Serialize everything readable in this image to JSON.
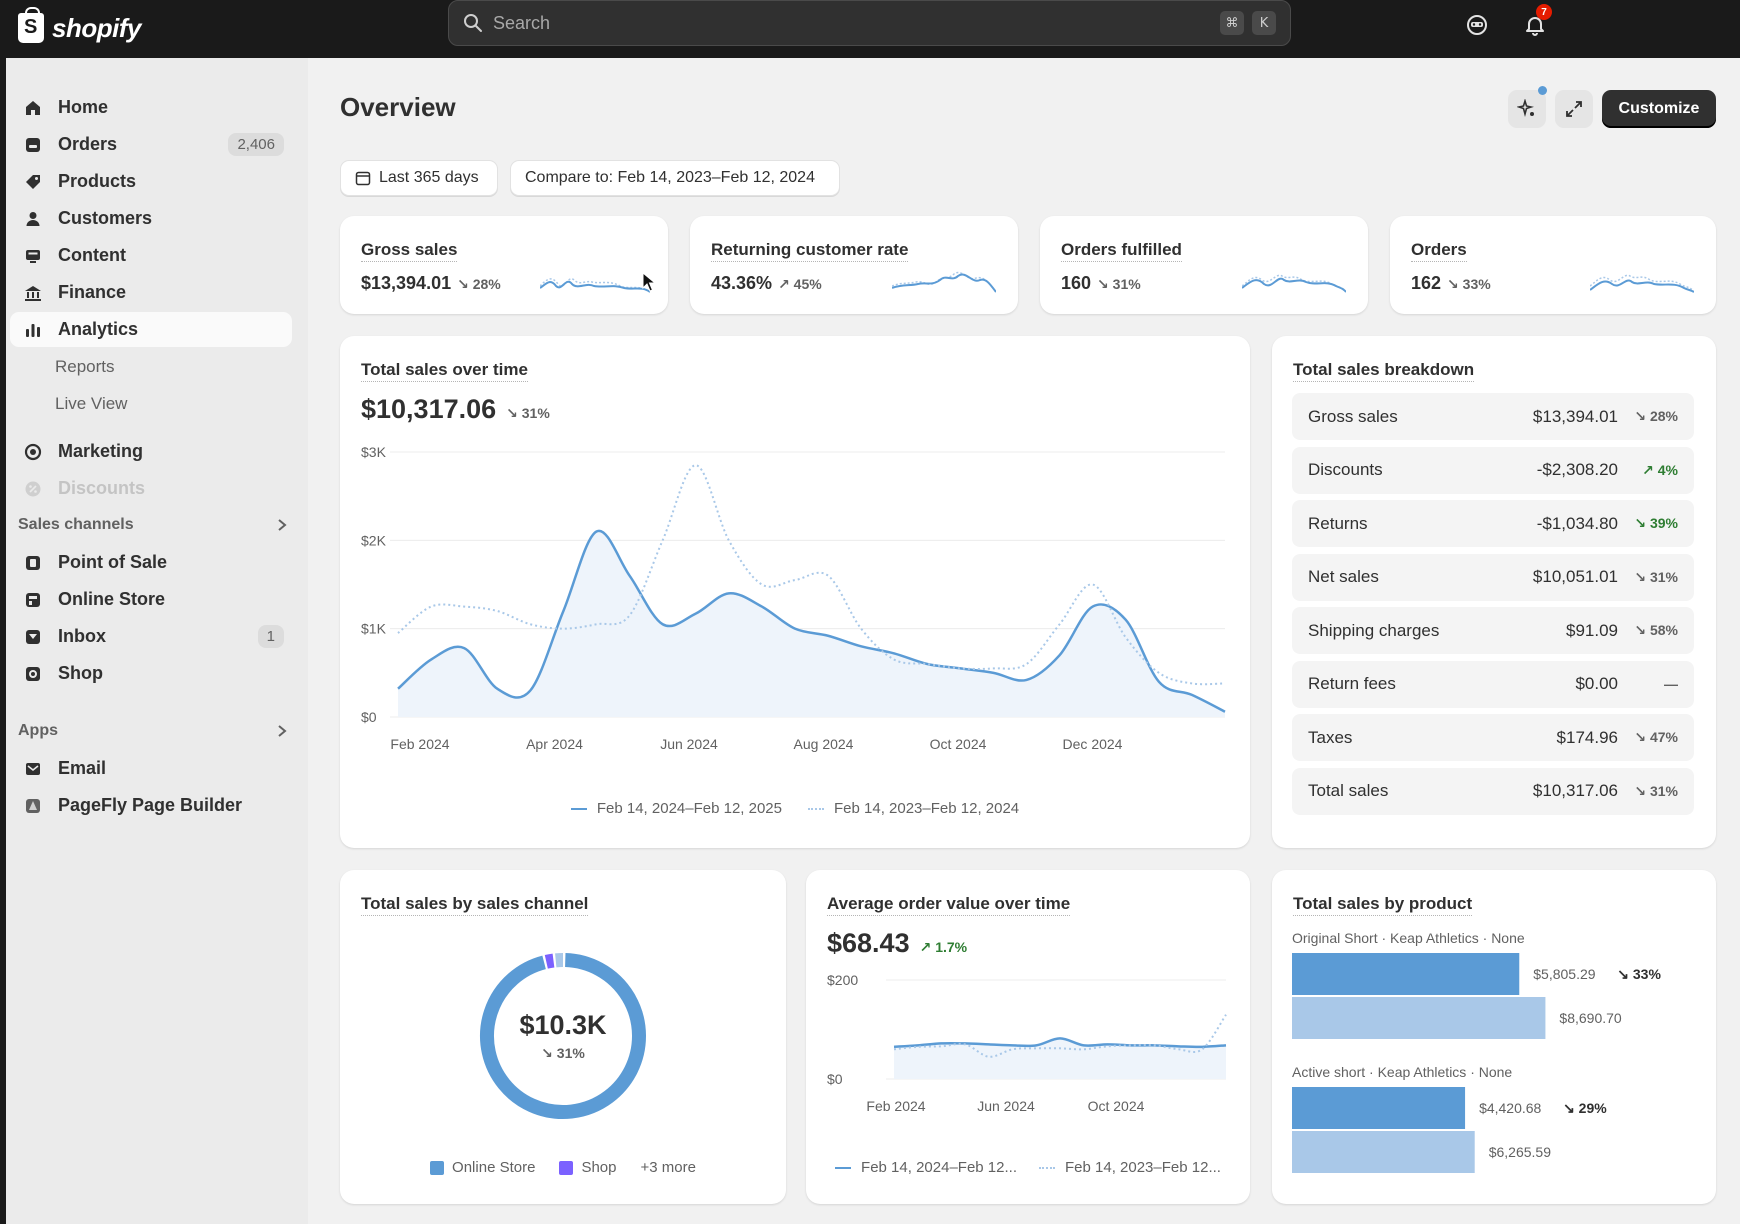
{
  "topbar": {
    "brand": "shopify",
    "search_placeholder": "Search",
    "shortcut_keys": [
      "⌘",
      "K"
    ],
    "notification_count": "7"
  },
  "sidebar": {
    "items": [
      {
        "label": "Home",
        "icon": "home-icon"
      },
      {
        "label": "Orders",
        "icon": "orders-icon",
        "badge": "2,406"
      },
      {
        "label": "Products",
        "icon": "tag-icon"
      },
      {
        "label": "Customers",
        "icon": "person-icon"
      },
      {
        "label": "Content",
        "icon": "content-icon"
      },
      {
        "label": "Finance",
        "icon": "bank-icon"
      },
      {
        "label": "Analytics",
        "icon": "bar-chart-icon"
      }
    ],
    "analytics_sub": [
      "Reports",
      "Live View"
    ],
    "marketing": "Marketing",
    "discounts": "Discounts",
    "sales_channels_label": "Sales channels",
    "channels": [
      {
        "label": "Point of Sale"
      },
      {
        "label": "Online Store"
      },
      {
        "label": "Inbox",
        "badge": "1"
      },
      {
        "label": "Shop"
      }
    ],
    "apps_label": "Apps",
    "apps": [
      {
        "label": "Email"
      },
      {
        "label": "PageFly Page Builder"
      }
    ]
  },
  "header": {
    "title": "Overview",
    "customize_label": "Customize",
    "date_range": "Last 365 days",
    "compare": "Compare to: Feb 14, 2023–Feb 12, 2024"
  },
  "metrics": [
    {
      "title": "Gross sales",
      "value": "$13,394.01",
      "delta": "↘ 28%"
    },
    {
      "title": "Returning customer rate",
      "value": "43.36%",
      "delta": "↗ 45%"
    },
    {
      "title": "Orders fulfilled",
      "value": "160",
      "delta": "↘ 31%"
    },
    {
      "title": "Orders",
      "value": "162",
      "delta": "↘ 33%"
    }
  ],
  "total_sales": {
    "title": "Total sales over time",
    "value": "$10,317.06",
    "delta": "↘ 31%",
    "legend_current": "Feb 14, 2024–Feb 12, 2025",
    "legend_previous": "Feb 14, 2023–Feb 12, 2024"
  },
  "breakdown": {
    "title": "Total sales breakdown",
    "rows": [
      {
        "label": "Gross sales",
        "value": "$13,394.01",
        "delta": "↘ 28%",
        "up": false
      },
      {
        "label": "Discounts",
        "value": "-$2,308.20",
        "delta": "↗ 4%",
        "up": true
      },
      {
        "label": "Returns",
        "value": "-$1,034.80",
        "delta": "↘ 39%",
        "up": true
      },
      {
        "label": "Net sales",
        "value": "$10,051.01",
        "delta": "↘ 31%",
        "up": false
      },
      {
        "label": "Shipping charges",
        "value": "$91.09",
        "delta": "↘ 58%",
        "up": false
      },
      {
        "label": "Return fees",
        "value": "$0.00",
        "delta": "—",
        "up": false
      },
      {
        "label": "Taxes",
        "value": "$174.96",
        "delta": "↘ 47%",
        "up": false
      },
      {
        "label": "Total sales",
        "value": "$10,317.06",
        "delta": "↘ 31%",
        "up": false
      }
    ]
  },
  "by_channel": {
    "title": "Total sales by sales channel",
    "center_value": "$10.3K",
    "center_delta": "↘ 31%",
    "legend": [
      "Online Store",
      "Shop",
      "+3 more"
    ]
  },
  "aov": {
    "title": "Average order value over time",
    "value": "$68.43",
    "delta": "↗ 1.7%",
    "legend_current": "Feb 14, 2024–Feb 12...",
    "legend_previous": "Feb 14, 2023–Feb 12..."
  },
  "by_product": {
    "title": "Total sales by product",
    "products": [
      {
        "name": "Original Short · Keap Athletics · None",
        "current": "$5,805.29",
        "delta": "↘ 33%",
        "previous": "$8,690.70"
      },
      {
        "name": "Active short · Keap Athletics · None",
        "current": "$4,420.68",
        "delta": "↘ 29%",
        "previous": "$6,265.59"
      }
    ]
  },
  "colors": {
    "accent": "#5b9bd5",
    "accent_light": "#a9c8e8",
    "shop": "#7b61ff",
    "dark": "#303030"
  },
  "chart_data": [
    {
      "type": "line",
      "title": "Total sales over time",
      "y_ticks": [
        "$3K",
        "$2K",
        "$1K",
        "$0"
      ],
      "x_ticks": [
        "Feb 2024",
        "Apr 2024",
        "Jun 2024",
        "Aug 2024",
        "Oct 2024",
        "Dec 2024"
      ],
      "ylim": [
        0,
        3000
      ],
      "series": [
        {
          "name": "Feb 14, 2024–Feb 12, 2025",
          "style": "solid",
          "values": [
            320,
            650,
            780,
            320,
            300,
            1200,
            2100,
            1600,
            1050,
            1170,
            1400,
            1250,
            1000,
            920,
            800,
            720,
            600,
            550,
            500,
            420,
            700,
            1250,
            1100,
            400,
            250,
            60
          ]
        },
        {
          "name": "Feb 14, 2023–Feb 12, 2024",
          "style": "dotted",
          "values": [
            950,
            1250,
            1250,
            1200,
            1050,
            1000,
            1050,
            1150,
            2000,
            2850,
            2000,
            1500,
            1550,
            1600,
            1000,
            650,
            600,
            550,
            550,
            600,
            1050,
            1500,
            900,
            500,
            380,
            380
          ]
        }
      ]
    },
    {
      "type": "pie",
      "title": "Total sales by sales channel",
      "slices": [
        {
          "name": "Online Store",
          "value": 96
        },
        {
          "name": "Shop",
          "value": 2
        },
        {
          "name": "+3 more",
          "value": 2
        }
      ]
    },
    {
      "type": "line",
      "title": "Average order value over time",
      "y_ticks": [
        "$200",
        "$0"
      ],
      "x_ticks": [
        "Feb 2024",
        "Jun 2024",
        "Oct 2024"
      ],
      "ylim": [
        0,
        200
      ],
      "series": [
        {
          "name": "Feb 14, 2024–Feb 12...",
          "style": "solid",
          "values": [
            65,
            68,
            72,
            72,
            70,
            68,
            68,
            82,
            68,
            70,
            68,
            68,
            66,
            65,
            68
          ]
        },
        {
          "name": "Feb 14, 2023–Feb 12...",
          "style": "dotted",
          "values": [
            60,
            65,
            66,
            70,
            45,
            60,
            62,
            62,
            60,
            66,
            68,
            68,
            60,
            60,
            130
          ]
        }
      ]
    },
    {
      "type": "bar",
      "title": "Total sales by product",
      "categories": [
        "Original Short · Keap Athletics · None",
        "Active short · Keap Athletics · None"
      ],
      "series": [
        {
          "name": "current",
          "values": [
            5805.29,
            4420.68
          ]
        },
        {
          "name": "previous",
          "values": [
            8690.7,
            6265.59
          ]
        }
      ]
    }
  ]
}
